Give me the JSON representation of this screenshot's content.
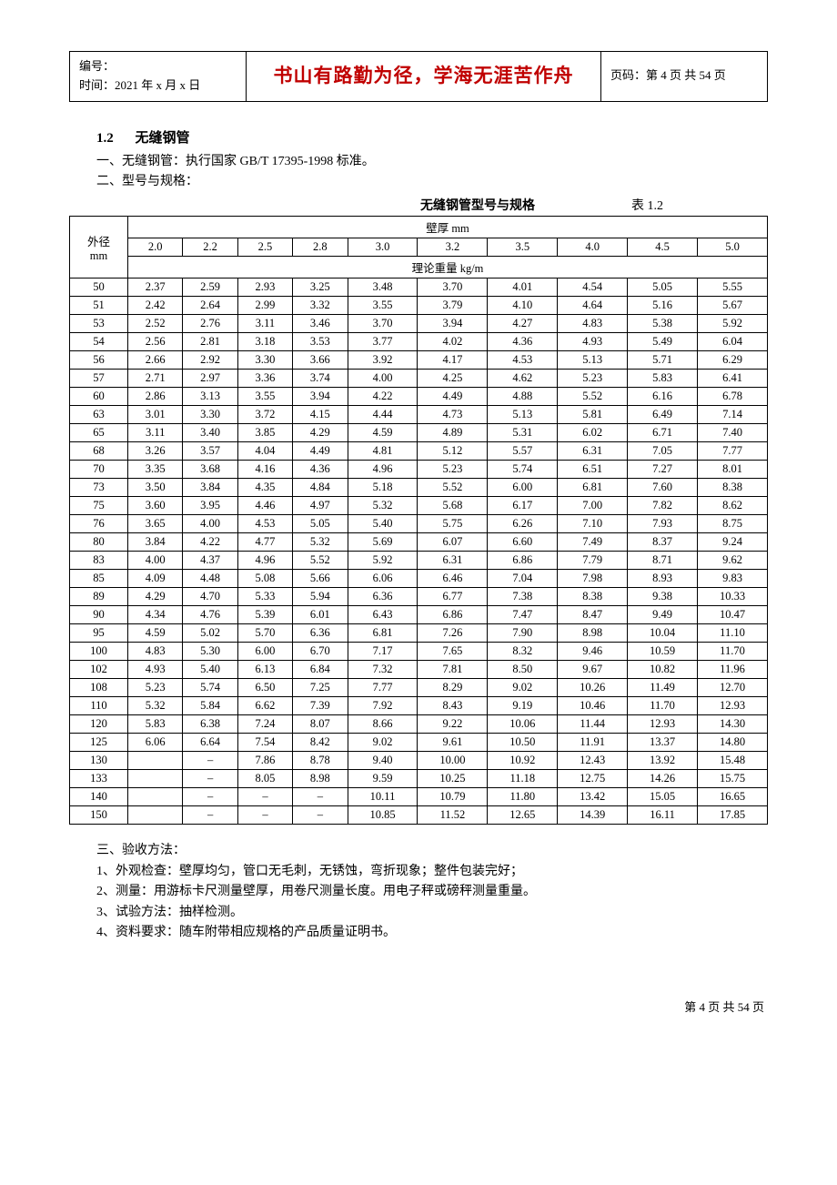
{
  "header": {
    "doc_no_label": "编号：",
    "date_line": "时间：2021 年 x 月 x 日",
    "motto": "书山有路勤为径，学海无涯苦作舟",
    "page_label": "页码：第 4 页 共 54 页"
  },
  "section": {
    "number": "1.2",
    "title": "无缝钢管",
    "line1": "一、无缝钢管：执行国家 GB/T   17395-1998 标准。",
    "line2": "二、型号与规格："
  },
  "table_meta": {
    "title": "无缝钢管型号与规格",
    "table_no": "表 1.2",
    "row_header": "外径\nmm",
    "group1": "壁厚    mm",
    "group2": "理论重量    kg/m",
    "col_headers": [
      "2.0",
      "2.2",
      "2.5",
      "2.8",
      "3.0",
      "3.2",
      "3.5",
      "4.0",
      "4.5",
      "5.0"
    ]
  },
  "rows": [
    {
      "d": "50",
      "v": [
        "2.37",
        "2.59",
        "2.93",
        "3.25",
        "3.48",
        "3.70",
        "4.01",
        "4.54",
        "5.05",
        "5.55"
      ]
    },
    {
      "d": "51",
      "v": [
        "2.42",
        "2.64",
        "2.99",
        "3.32",
        "3.55",
        "3.79",
        "4.10",
        "4.64",
        "5.16",
        "5.67"
      ]
    },
    {
      "d": "53",
      "v": [
        "2.52",
        "2.76",
        "3.11",
        "3.46",
        "3.70",
        "3.94",
        "4.27",
        "4.83",
        "5.38",
        "5.92"
      ]
    },
    {
      "d": "54",
      "v": [
        "2.56",
        "2.81",
        "3.18",
        "3.53",
        "3.77",
        "4.02",
        "4.36",
        "4.93",
        "5.49",
        "6.04"
      ]
    },
    {
      "d": "56",
      "v": [
        "2.66",
        "2.92",
        "3.30",
        "3.66",
        "3.92",
        "4.17",
        "4.53",
        "5.13",
        "5.71",
        "6.29"
      ]
    },
    {
      "d": "57",
      "v": [
        "2.71",
        "2.97",
        "3.36",
        "3.74",
        "4.00",
        "4.25",
        "4.62",
        "5.23",
        "5.83",
        "6.41"
      ]
    },
    {
      "d": "60",
      "v": [
        "2.86",
        "3.13",
        "3.55",
        "3.94",
        "4.22",
        "4.49",
        "4.88",
        "5.52",
        "6.16",
        "6.78"
      ]
    },
    {
      "d": "63",
      "v": [
        "3.01",
        "3.30",
        "3.72",
        "4.15",
        "4.44",
        "4.73",
        "5.13",
        "5.81",
        "6.49",
        "7.14"
      ]
    },
    {
      "d": "65",
      "v": [
        "3.11",
        "3.40",
        "3.85",
        "4.29",
        "4.59",
        "4.89",
        "5.31",
        "6.02",
        "6.71",
        "7.40"
      ]
    },
    {
      "d": "68",
      "v": [
        "3.26",
        "3.57",
        "4.04",
        "4.49",
        "4.81",
        "5.12",
        "5.57",
        "6.31",
        "7.05",
        "7.77"
      ]
    },
    {
      "d": "70",
      "v": [
        "3.35",
        "3.68",
        "4.16",
        "4.36",
        "4.96",
        "5.23",
        "5.74",
        "6.51",
        "7.27",
        "8.01"
      ]
    },
    {
      "d": "73",
      "v": [
        "3.50",
        "3.84",
        "4.35",
        "4.84",
        "5.18",
        "5.52",
        "6.00",
        "6.81",
        "7.60",
        "8.38"
      ]
    },
    {
      "d": "75",
      "v": [
        "3.60",
        "3.95",
        "4.46",
        "4.97",
        "5.32",
        "5.68",
        "6.17",
        "7.00",
        "7.82",
        "8.62"
      ]
    },
    {
      "d": "76",
      "v": [
        "3.65",
        "4.00",
        "4.53",
        "5.05",
        "5.40",
        "5.75",
        "6.26",
        "7.10",
        "7.93",
        "8.75"
      ]
    },
    {
      "d": "80",
      "v": [
        "3.84",
        "4.22",
        "4.77",
        "5.32",
        "5.69",
        "6.07",
        "6.60",
        "7.49",
        "8.37",
        "9.24"
      ]
    },
    {
      "d": "83",
      "v": [
        "4.00",
        "4.37",
        "4.96",
        "5.52",
        "5.92",
        "6.31",
        "6.86",
        "7.79",
        "8.71",
        "9.62"
      ]
    },
    {
      "d": "85",
      "v": [
        "4.09",
        "4.48",
        "5.08",
        "5.66",
        "6.06",
        "6.46",
        "7.04",
        "7.98",
        "8.93",
        "9.83"
      ]
    },
    {
      "d": "89",
      "v": [
        "4.29",
        "4.70",
        "5.33",
        "5.94",
        "6.36",
        "6.77",
        "7.38",
        "8.38",
        "9.38",
        "10.33"
      ]
    },
    {
      "d": "90",
      "v": [
        "4.34",
        "4.76",
        "5.39",
        "6.01",
        "6.43",
        "6.86",
        "7.47",
        "8.47",
        "9.49",
        "10.47"
      ]
    },
    {
      "d": "95",
      "v": [
        "4.59",
        "5.02",
        "5.70",
        "6.36",
        "6.81",
        "7.26",
        "7.90",
        "8.98",
        "10.04",
        "11.10"
      ]
    },
    {
      "d": "100",
      "v": [
        "4.83",
        "5.30",
        "6.00",
        "6.70",
        "7.17",
        "7.65",
        "8.32",
        "9.46",
        "10.59",
        "11.70"
      ]
    },
    {
      "d": "102",
      "v": [
        "4.93",
        "5.40",
        "6.13",
        "6.84",
        "7.32",
        "7.81",
        "8.50",
        "9.67",
        "10.82",
        "11.96"
      ]
    },
    {
      "d": "108",
      "v": [
        "5.23",
        "5.74",
        "6.50",
        "7.25",
        "7.77",
        "8.29",
        "9.02",
        "10.26",
        "11.49",
        "12.70"
      ]
    },
    {
      "d": "110",
      "v": [
        "5.32",
        "5.84",
        "6.62",
        "7.39",
        "7.92",
        "8.43",
        "9.19",
        "10.46",
        "11.70",
        "12.93"
      ]
    },
    {
      "d": "120",
      "v": [
        "5.83",
        "6.38",
        "7.24",
        "8.07",
        "8.66",
        "9.22",
        "10.06",
        "11.44",
        "12.93",
        "14.30"
      ]
    },
    {
      "d": "125",
      "v": [
        "6.06",
        "6.64",
        "7.54",
        "8.42",
        "9.02",
        "9.61",
        "10.50",
        "11.91",
        "13.37",
        "14.80"
      ]
    },
    {
      "d": "130",
      "v": [
        "",
        "–",
        "7.86",
        "8.78",
        "9.40",
        "10.00",
        "10.92",
        "12.43",
        "13.92",
        "15.48"
      ]
    },
    {
      "d": "133",
      "v": [
        "",
        "–",
        "8.05",
        "8.98",
        "9.59",
        "10.25",
        "11.18",
        "12.75",
        "14.26",
        "15.75"
      ]
    },
    {
      "d": "140",
      "v": [
        "",
        "–",
        "–",
        "–",
        "10.11",
        "10.79",
        "11.80",
        "13.42",
        "15.05",
        "16.65"
      ]
    },
    {
      "d": "150",
      "v": [
        "",
        "–",
        "–",
        "–",
        "10.85",
        "11.52",
        "12.65",
        "14.39",
        "16.11",
        "17.85"
      ]
    }
  ],
  "notes": {
    "n0": "三、验收方法：",
    "n1": "1、外观检查：壁厚均匀，管口无毛刺，无锈蚀，弯折现象；整件包装完好；",
    "n2": "2、测量：用游标卡尺测量壁厚，用卷尺测量长度。用电子秤或磅秤测量重量。",
    "n3": "3、试验方法：抽样检测。",
    "n4": "4、资料要求：随车附带相应规格的产品质量证明书。"
  },
  "footer": "第 4 页 共 54 页"
}
